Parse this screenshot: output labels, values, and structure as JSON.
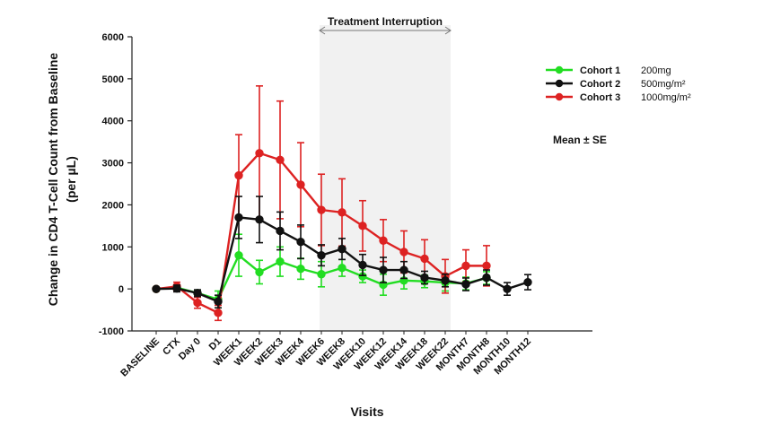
{
  "chart_data": {
    "type": "line",
    "ylabel_line1": "Change in CD4 T-Cell Count from Baseline",
    "ylabel_line2": "(per µL)",
    "xlabel": "Visits",
    "ylim": [
      -1000,
      6000
    ],
    "yticks": [
      "-1000",
      "0",
      "1000",
      "2000",
      "3000",
      "4000",
      "5000",
      "6000"
    ],
    "ytick_values": [
      -1000,
      0,
      1000,
      2000,
      3000,
      4000,
      5000,
      6000
    ],
    "categories": [
      "BASELINE",
      "CTX",
      "Day 0",
      "D1",
      "WEEK1",
      "WEEK2",
      "WEEK3",
      "WEEK4",
      "WEEK6",
      "WEEK8",
      "WEEK10",
      "WEEK12",
      "WEEK14",
      "WEEK18",
      "WEEK22",
      "MONTH7",
      "MONTH8",
      "MONTH10",
      "MONTH12"
    ],
    "annotation": {
      "text": "Treatment Interruption",
      "from_category": "WEEK6",
      "to_category": "WEEK22"
    },
    "note": "Mean ± SE",
    "legend_position": "top-right",
    "series": [
      {
        "name": "Cohort 1",
        "dose": "200mg",
        "color": "#22dd22",
        "values": [
          0,
          30,
          -100,
          -250,
          800,
          400,
          650,
          480,
          350,
          500,
          300,
          100,
          200,
          180,
          150,
          130,
          260,
          null,
          null
        ],
        "err": [
          0,
          60,
          60,
          200,
          500,
          280,
          350,
          250,
          300,
          200,
          150,
          250,
          200,
          150,
          200,
          150,
          150,
          null,
          null
        ]
      },
      {
        "name": "Cohort 2",
        "dose": "500mg/m²",
        "color": "#111111",
        "values": [
          0,
          10,
          -100,
          -300,
          1700,
          1650,
          1380,
          1120,
          800,
          950,
          570,
          450,
          450,
          270,
          200,
          110,
          270,
          0,
          160
        ],
        "err": [
          0,
          80,
          80,
          150,
          500,
          550,
          450,
          400,
          250,
          250,
          250,
          300,
          200,
          150,
          150,
          150,
          180,
          150,
          180
        ]
      },
      {
        "name": "Cohort 3",
        "dose": "1000mg/m²",
        "color": "#dd2222",
        "values": [
          0,
          60,
          -330,
          -570,
          2700,
          3230,
          3070,
          2480,
          1880,
          1820,
          1500,
          1150,
          880,
          720,
          300,
          550,
          550,
          null,
          null
        ],
        "err": [
          0,
          100,
          130,
          180,
          970,
          1600,
          1400,
          1000,
          850,
          800,
          600,
          500,
          500,
          450,
          400,
          380,
          480,
          null,
          null
        ]
      }
    ]
  }
}
